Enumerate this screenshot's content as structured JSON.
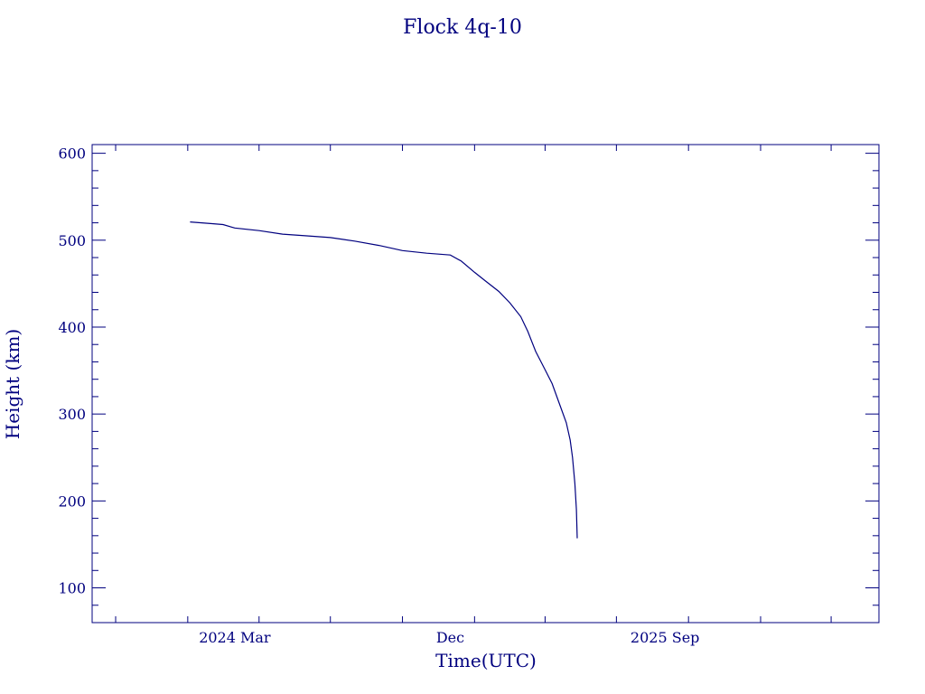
{
  "chart_data": {
    "type": "line",
    "title": "Flock 4q-10",
    "xlabel": "Time(UTC)",
    "ylabel": "Height (km)",
    "x_type": "date",
    "xlim": [
      "2023-09-01",
      "2026-06-01"
    ],
    "ylim": [
      60,
      610
    ],
    "grid": false,
    "color": "#00007f",
    "x_ticks": [
      {
        "value": "2024-03-01",
        "label": "2024 Mar"
      },
      {
        "value": "2024-12-01",
        "label": "Dec"
      },
      {
        "value": "2025-09-01",
        "label": "2025 Sep"
      }
    ],
    "y_ticks": [
      100,
      200,
      300,
      400,
      500,
      600
    ],
    "series": [
      {
        "x": [
          "2024-01-04",
          "2024-02-01",
          "2024-02-15",
          "2024-03-01",
          "2024-04-01",
          "2024-05-01",
          "2024-06-01",
          "2024-07-01",
          "2024-08-01",
          "2024-09-01",
          "2024-10-01",
          "2024-11-01",
          "2024-12-01",
          "2024-12-15",
          "2025-01-01",
          "2025-01-15",
          "2025-02-01",
          "2025-02-15",
          "2025-03-01",
          "2025-03-10",
          "2025-03-20",
          "2025-04-01",
          "2025-04-10",
          "2025-04-20",
          "2025-04-28",
          "2025-05-03",
          "2025-05-06",
          "2025-05-09",
          "2025-05-11",
          "2025-05-12"
        ],
        "y": [
          521,
          519,
          518,
          514,
          511,
          507,
          505,
          503,
          499,
          494,
          488,
          485,
          483,
          476,
          463,
          453,
          441,
          428,
          412,
          395,
          372,
          351,
          335,
          310,
          290,
          270,
          250,
          220,
          190,
          157
        ]
      }
    ]
  }
}
